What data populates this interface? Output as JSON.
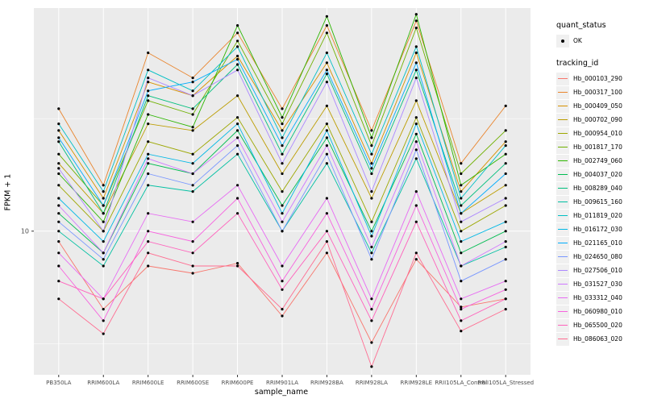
{
  "axes": {
    "y_title": "FPKM + 1",
    "x_title": "sample_name"
  },
  "legend": {
    "quant_status_title": "quant_status",
    "quant_status_items": [
      {
        "label": "OK",
        "symbol": "point"
      }
    ],
    "tracking_title": "tracking_id"
  },
  "colors": {
    "panel_bg": "#EBEBEB",
    "grid": "#FFFFFF",
    "point": "#000000",
    "tick_text": "#4D4D4D"
  },
  "chart_data": {
    "type": "line",
    "title": "",
    "xlabel": "sample_name",
    "ylabel": "FPKM + 1",
    "y_scale": "log10",
    "ylim": [
      2.3,
      98
    ],
    "legend_position": "right",
    "grid": true,
    "y_ticks": [
      {
        "value": 10,
        "label": "10"
      }
    ],
    "y_major_gridlines": [
      10
    ],
    "y_minor_gridlines": [
      3.162,
      31.62
    ],
    "categories": [
      "PB350LA",
      "RRIM600LA",
      "RRIM600LE",
      "RRIM600SE",
      "RRIM600PE",
      "RRIM901LA",
      "RRIM928BA",
      "RRIM928LA",
      "RRIM928LE",
      "RRII105LA_Control",
      "RRII105LA_Stressed"
    ],
    "series": [
      {
        "name": "Hb_000103_290",
        "color": "#F8766D",
        "values": [
          9,
          4.5,
          7,
          6.5,
          7.2,
          4.2,
          8,
          3.2,
          7.5,
          4.6,
          5
        ]
      },
      {
        "name": "Hb_000317_100",
        "color": "#E9842C",
        "values": [
          35,
          16,
          62,
          48,
          76,
          35,
          82,
          28,
          86,
          20,
          36
        ]
      },
      {
        "name": "Hb_000409_050",
        "color": "#D69100",
        "values": [
          28,
          14,
          46,
          40,
          60,
          28,
          56,
          20,
          62,
          15,
          25
        ]
      },
      {
        "name": "Hb_000702_090",
        "color": "#BC9D00",
        "values": [
          20,
          12,
          30,
          28,
          40,
          18,
          36,
          14,
          38,
          12,
          16
        ]
      },
      {
        "name": "Hb_000954_010",
        "color": "#9CA700",
        "values": [
          16,
          10,
          25,
          22,
          32,
          15,
          30,
          11,
          32,
          10,
          13
        ]
      },
      {
        "name": "Hb_001817_170",
        "color": "#6FB000",
        "values": [
          22,
          13,
          38,
          33,
          70,
          30,
          76,
          24,
          80,
          18,
          28
        ]
      },
      {
        "name": "Hb_002749_060",
        "color": "#2CB600",
        "values": [
          18,
          11,
          33,
          29,
          82,
          32,
          90,
          26,
          92,
          16,
          22
        ]
      },
      {
        "name": "Hb_004037_020",
        "color": "#00BC51",
        "values": [
          12,
          8,
          20,
          18,
          28,
          13,
          26,
          10,
          27,
          8,
          10
        ]
      },
      {
        "name": "Hb_008289_040",
        "color": "#00BF7D",
        "values": [
          25,
          12,
          40,
          35,
          55,
          22,
          50,
          18,
          52,
          13,
          20
        ]
      },
      {
        "name": "Hb_009615_160",
        "color": "#00C0A2",
        "values": [
          10,
          7,
          16,
          15,
          22,
          10,
          20,
          8,
          21,
          7,
          8.5
        ]
      },
      {
        "name": "Hb_011819_020",
        "color": "#00BFC4",
        "values": [
          30,
          15,
          52,
          42,
          66,
          26,
          62,
          22,
          66,
          14,
          24
        ]
      },
      {
        "name": "Hb_016172_030",
        "color": "#00B8E5",
        "values": [
          14,
          9,
          22,
          20,
          30,
          12,
          28,
          9.5,
          30,
          9,
          11
        ]
      },
      {
        "name": "Hb_021165_010",
        "color": "#00ACFC",
        "values": [
          26,
          13,
          42,
          46,
          58,
          24,
          52,
          19,
          56,
          12,
          18
        ]
      },
      {
        "name": "Hb_024650_080",
        "color": "#7997FF",
        "values": [
          11,
          7.5,
          18,
          16,
          24,
          10,
          22,
          7.5,
          23,
          6,
          7.5
        ]
      },
      {
        "name": "Hb_027506_010",
        "color": "#AC88FF",
        "values": [
          19,
          10,
          48,
          40,
          52,
          20,
          46,
          15,
          48,
          11,
          14
        ]
      },
      {
        "name": "Hb_031527_030",
        "color": "#CF78FF",
        "values": [
          13,
          8,
          21,
          18,
          26,
          11,
          24,
          8.5,
          25,
          7,
          9
        ]
      },
      {
        "name": "Hb_033312_040",
        "color": "#E76BF3",
        "values": [
          8,
          5,
          12,
          11,
          16,
          7,
          14,
          5,
          15,
          5,
          6
        ]
      },
      {
        "name": "Hb_060980_010",
        "color": "#F763DF",
        "values": [
          7,
          4,
          10,
          9,
          14,
          6,
          12,
          4.5,
          13,
          4.5,
          5.5
        ]
      },
      {
        "name": "Hb_065500_020",
        "color": "#FF62BC",
        "values": [
          6,
          5,
          9,
          8,
          12,
          5.5,
          10,
          4,
          11,
          4,
          5
        ]
      },
      {
        "name": "Hb_086063_020",
        "color": "#FF6C91",
        "values": [
          5,
          3.5,
          8,
          7,
          7,
          4.5,
          9,
          2.5,
          8,
          3.6,
          4.5
        ]
      }
    ]
  }
}
